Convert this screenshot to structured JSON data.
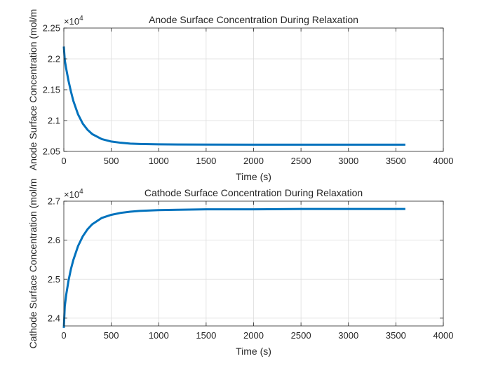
{
  "colors": {
    "series": "#0072bd",
    "axis": "#262626",
    "grid": "#dcdcdc",
    "background": "#ffffff"
  },
  "chart_data": [
    {
      "type": "line",
      "title": "Anode Surface Concentration During Relaxation",
      "xlabel": "Time (s)",
      "ylabel": "Anode Surface Concentration (mol/m",
      "exponent_label": "×10",
      "exponent_power": "4",
      "xlim": [
        0,
        4000
      ],
      "ylim": [
        2.05,
        2.25
      ],
      "y_scale_factor": 10000,
      "grid": true,
      "xticks": [
        0,
        500,
        1000,
        1500,
        2000,
        2500,
        3000,
        3500,
        4000
      ],
      "xtick_labels": [
        "0",
        "500",
        "1000",
        "1500",
        "2000",
        "2500",
        "3000",
        "3500",
        "4000"
      ],
      "yticks": [
        2.05,
        2.1,
        2.15,
        2.2,
        2.25
      ],
      "ytick_labels": [
        "2.05",
        "2.1",
        "2.15",
        "2.2",
        "2.25"
      ],
      "series": [
        {
          "x": [
            0,
            10,
            25,
            50,
            75,
            100,
            150,
            200,
            250,
            300,
            400,
            500,
            600,
            700,
            800,
            1000,
            1200,
            1500,
            2000,
            2500,
            3000,
            3600
          ],
          "y": [
            2.22,
            2.198,
            2.184,
            2.164,
            2.147,
            2.132,
            2.11,
            2.095,
            2.085,
            2.078,
            2.07,
            2.066,
            2.064,
            2.0627,
            2.0621,
            2.0615,
            2.0612,
            2.0611,
            2.061,
            2.061,
            2.061,
            2.061
          ]
        }
      ]
    },
    {
      "type": "line",
      "title": "Cathode Surface Concentration During Relaxation",
      "xlabel": "Time (s)",
      "ylabel": "Cathode Surface Concentration (mol/m",
      "exponent_label": "×10",
      "exponent_power": "4",
      "xlim": [
        0,
        4000
      ],
      "ylim": [
        2.38,
        2.7
      ],
      "y_scale_factor": 10000,
      "grid": true,
      "xticks": [
        0,
        500,
        1000,
        1500,
        2000,
        2500,
        3000,
        3500,
        4000
      ],
      "xtick_labels": [
        "0",
        "500",
        "1000",
        "1500",
        "2000",
        "2500",
        "3000",
        "3500",
        "4000"
      ],
      "yticks": [
        2.4,
        2.5,
        2.6,
        2.7
      ],
      "ytick_labels": [
        "2.4",
        "2.5",
        "2.6",
        "2.7"
      ],
      "series": [
        {
          "x": [
            0,
            10,
            25,
            50,
            75,
            100,
            150,
            200,
            250,
            300,
            400,
            500,
            600,
            700,
            800,
            1000,
            1200,
            1500,
            2000,
            2500,
            3000,
            3600
          ],
          "y": [
            2.375,
            2.43,
            2.46,
            2.497,
            2.526,
            2.549,
            2.585,
            2.61,
            2.628,
            2.641,
            2.657,
            2.665,
            2.67,
            2.673,
            2.675,
            2.677,
            2.678,
            2.679,
            2.679,
            2.68,
            2.68,
            2.68
          ]
        }
      ]
    }
  ]
}
